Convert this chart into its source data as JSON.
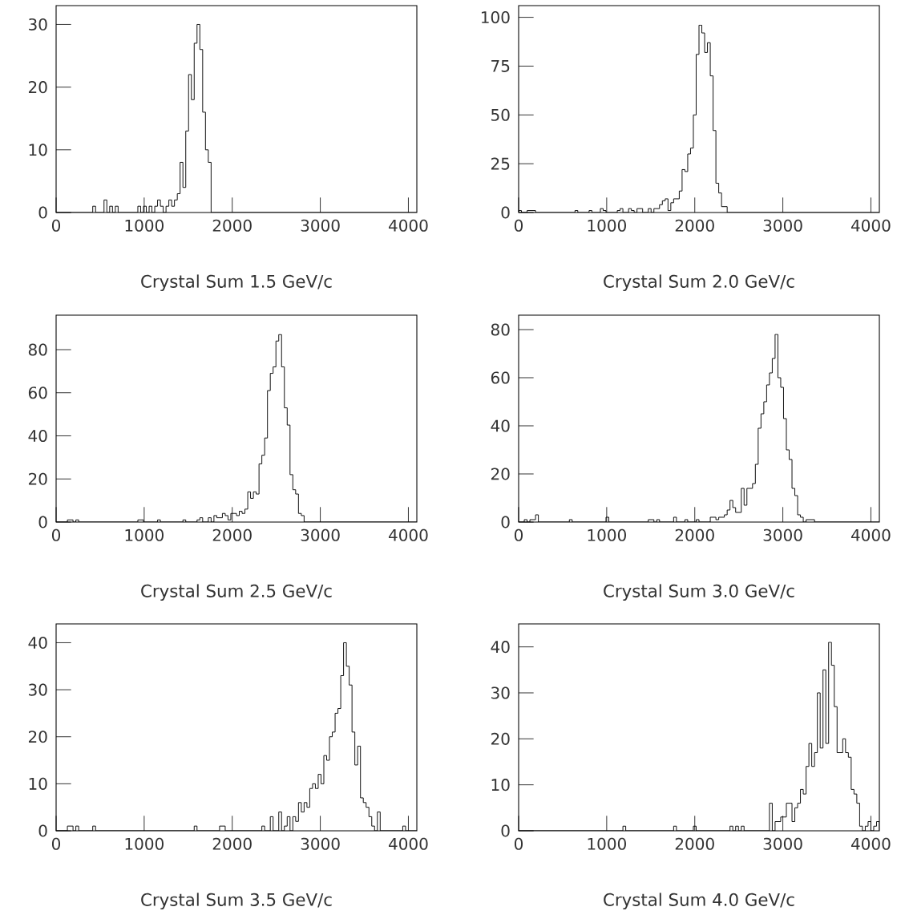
{
  "chart_data": [
    {
      "type": "histogram",
      "xlabel": "Crystal Sum 1.5 GeV/c",
      "color": "#000000",
      "xlim": [
        0,
        4096
      ],
      "ylim": [
        0,
        33
      ],
      "xticks": [
        0,
        1000,
        2000,
        3000,
        4000
      ],
      "yticks": [
        0,
        10,
        20,
        30
      ],
      "bins": [
        0,
        32,
        64,
        96,
        128,
        160,
        192,
        224,
        256,
        288,
        320,
        352,
        384,
        416,
        448,
        480,
        512,
        544,
        576,
        608,
        640,
        672,
        704,
        736,
        768,
        800,
        832,
        864,
        896,
        928,
        960,
        992,
        1024,
        1056,
        1088,
        1120,
        1152,
        1184,
        1216,
        1248,
        1280,
        1312,
        1344,
        1376,
        1408,
        1440,
        1472,
        1504,
        1536,
        1568,
        1600,
        1632,
        1664,
        1696,
        1728,
        1760,
        1792,
        1824,
        1856,
        1888,
        1920,
        1952,
        1984,
        2016,
        2048,
        2080,
        2112,
        2144,
        2176,
        2208,
        2240,
        2272,
        2304,
        2336,
        2368,
        2400,
        2432,
        2464,
        2496,
        2528,
        2560,
        2592,
        2624,
        2656,
        2688,
        2720,
        2752,
        2784,
        2816,
        2848,
        2880,
        2912,
        2944,
        2976,
        3008,
        3040,
        3072,
        3104,
        3136,
        3168,
        3200,
        3232,
        3264,
        3296,
        3328,
        3360,
        3392,
        3424,
        3456,
        3488,
        3520,
        3552,
        3584,
        3616,
        3648,
        3680,
        3712,
        3744,
        3776,
        3808,
        3840,
        3872,
        3904,
        3936,
        3968,
        4000,
        4032,
        4064,
        4096
      ],
      "values": [
        0,
        0,
        0,
        0,
        0,
        0,
        0,
        0,
        0,
        0,
        0,
        0,
        0,
        1,
        0,
        0,
        0,
        2,
        0,
        1,
        0,
        1,
        0,
        0,
        0,
        0,
        0,
        0,
        0,
        1,
        0,
        1,
        0,
        1,
        0,
        1,
        2,
        1,
        0,
        1,
        2,
        1,
        2,
        3,
        8,
        4,
        13,
        22,
        18,
        27,
        30,
        26,
        16,
        10,
        8,
        0,
        0,
        0,
        0,
        0,
        0,
        0,
        0,
        0,
        0,
        0,
        0,
        0,
        0,
        0,
        0,
        0,
        0,
        0,
        0,
        0,
        0,
        0,
        0,
        0,
        0,
        0,
        0,
        0,
        0,
        0,
        0,
        0,
        0,
        0,
        0,
        0,
        0,
        0,
        0,
        0,
        0,
        0,
        0,
        0,
        0,
        0,
        0,
        0,
        0,
        0,
        0,
        0,
        0,
        0,
        0,
        0,
        0,
        0,
        0,
        0,
        0,
        0,
        0,
        0,
        0,
        0,
        0,
        0,
        0,
        0,
        0,
        0
      ]
    },
    {
      "type": "histogram",
      "xlabel": "Crystal Sum 2.0 GeV/c",
      "color": "#000000",
      "xlim": [
        0,
        4096
      ],
      "ylim": [
        0,
        106
      ],
      "xticks": [
        0,
        1000,
        2000,
        3000,
        4000
      ],
      "yticks": [
        0,
        25,
        50,
        75,
        100
      ],
      "bins": [
        0,
        32,
        64,
        96,
        128,
        160,
        192,
        224,
        256,
        288,
        320,
        352,
        384,
        416,
        448,
        480,
        512,
        544,
        576,
        608,
        640,
        672,
        704,
        736,
        768,
        800,
        832,
        864,
        896,
        928,
        960,
        992,
        1024,
        1056,
        1088,
        1120,
        1152,
        1184,
        1216,
        1248,
        1280,
        1312,
        1344,
        1376,
        1408,
        1440,
        1472,
        1504,
        1536,
        1568,
        1600,
        1632,
        1664,
        1696,
        1728,
        1760,
        1792,
        1824,
        1856,
        1888,
        1920,
        1952,
        1984,
        2016,
        2048,
        2080,
        2112,
        2144,
        2176,
        2208,
        2240,
        2272,
        2304,
        2336,
        2368,
        2400,
        2432,
        2464,
        2496,
        2528,
        2560,
        2592,
        2624,
        2656,
        2688,
        2720,
        2752,
        2784,
        2816,
        2848,
        2880,
        2912,
        2944,
        2976,
        3008,
        3040,
        3072,
        3104,
        3136,
        3168,
        3200,
        3232,
        3264,
        3296,
        3328,
        3360,
        3392,
        3424,
        3456,
        3488,
        3520,
        3552,
        3584,
        3616,
        3648,
        3680,
        3712,
        3744,
        3776,
        3808,
        3840,
        3872,
        3904,
        3936,
        3968,
        4000,
        4032,
        4064,
        4096
      ],
      "values": [
        1,
        0,
        0,
        1,
        1,
        1,
        0,
        0,
        0,
        0,
        0,
        0,
        0,
        0,
        0,
        0,
        0,
        0,
        0,
        0,
        1,
        0,
        0,
        0,
        0,
        1,
        0,
        0,
        0,
        2,
        1,
        0,
        0,
        0,
        0,
        1,
        2,
        0,
        0,
        2,
        1,
        0,
        2,
        2,
        0,
        0,
        2,
        0,
        2,
        2,
        4,
        6,
        7,
        1,
        5,
        7,
        7,
        11,
        22,
        21,
        30,
        33,
        50,
        81,
        96,
        92,
        82,
        87,
        70,
        42,
        15,
        10,
        3,
        3,
        0,
        0,
        0,
        0,
        0,
        0,
        0,
        0,
        0,
        0,
        0,
        0,
        0,
        0,
        0,
        0,
        0,
        0,
        0,
        0,
        0,
        0,
        0,
        0,
        0,
        0,
        0,
        0,
        0,
        0,
        0,
        0,
        0,
        0,
        0,
        0,
        0,
        0,
        0,
        0,
        0,
        0,
        0,
        0,
        0,
        0,
        0,
        0,
        0,
        0,
        0,
        0,
        0,
        0
      ]
    },
    {
      "type": "histogram",
      "xlabel": "Crystal Sum 2.5 GeV/c",
      "color": "#000000",
      "xlim": [
        0,
        4096
      ],
      "ylim": [
        0,
        96
      ],
      "xticks": [
        0,
        1000,
        2000,
        3000,
        4000
      ],
      "yticks": [
        0,
        20,
        40,
        60,
        80
      ],
      "bins": [
        0,
        32,
        64,
        96,
        128,
        160,
        192,
        224,
        256,
        288,
        320,
        352,
        384,
        416,
        448,
        480,
        512,
        544,
        576,
        608,
        640,
        672,
        704,
        736,
        768,
        800,
        832,
        864,
        896,
        928,
        960,
        992,
        1024,
        1056,
        1088,
        1120,
        1152,
        1184,
        1216,
        1248,
        1280,
        1312,
        1344,
        1376,
        1408,
        1440,
        1472,
        1504,
        1536,
        1568,
        1600,
        1632,
        1664,
        1696,
        1728,
        1760,
        1792,
        1824,
        1856,
        1888,
        1920,
        1952,
        1984,
        2016,
        2048,
        2080,
        2112,
        2144,
        2176,
        2208,
        2240,
        2272,
        2304,
        2336,
        2368,
        2400,
        2432,
        2464,
        2496,
        2528,
        2560,
        2592,
        2624,
        2656,
        2688,
        2720,
        2752,
        2784,
        2816,
        2848,
        2880,
        2912,
        2944,
        2976,
        3008,
        3040,
        3072,
        3104,
        3136,
        3168,
        3200,
        3232,
        3264,
        3296,
        3328,
        3360,
        3392,
        3424,
        3456,
        3488,
        3520,
        3552,
        3584,
        3616,
        3648,
        3680,
        3712,
        3744,
        3776,
        3808,
        3840,
        3872,
        3904,
        3936,
        3968,
        4000,
        4032,
        4064,
        4096
      ],
      "values": [
        0,
        0,
        0,
        0,
        1,
        1,
        0,
        1,
        0,
        0,
        0,
        0,
        0,
        0,
        0,
        0,
        0,
        0,
        0,
        0,
        0,
        0,
        0,
        0,
        0,
        0,
        0,
        0,
        0,
        1,
        1,
        0,
        0,
        0,
        0,
        0,
        1,
        0,
        0,
        0,
        0,
        0,
        0,
        0,
        0,
        1,
        0,
        0,
        0,
        0,
        1,
        2,
        0,
        0,
        2,
        0,
        3,
        2,
        2,
        4,
        3,
        1,
        4,
        4,
        3,
        5,
        4,
        6,
        14,
        11,
        14,
        13,
        27,
        31,
        39,
        61,
        69,
        72,
        84,
        87,
        72,
        53,
        45,
        22,
        15,
        13,
        4,
        3,
        0,
        0,
        0,
        0,
        0,
        0,
        0,
        0,
        0,
        0,
        0,
        0,
        0,
        0,
        0,
        0,
        0,
        0,
        0,
        0,
        0,
        0,
        0,
        0,
        0,
        0,
        0,
        0,
        0,
        0,
        0,
        0,
        0,
        0,
        0,
        0,
        0,
        0,
        0,
        0
      ]
    },
    {
      "type": "histogram",
      "xlabel": "Crystal Sum 3.0 GeV/c",
      "color": "#000000",
      "xlim": [
        0,
        4096
      ],
      "ylim": [
        0,
        86
      ],
      "xticks": [
        0,
        1000,
        2000,
        3000,
        4000
      ],
      "yticks": [
        0,
        20,
        40,
        60,
        80
      ],
      "bins": [
        0,
        32,
        64,
        96,
        128,
        160,
        192,
        224,
        256,
        288,
        320,
        352,
        384,
        416,
        448,
        480,
        512,
        544,
        576,
        608,
        640,
        672,
        704,
        736,
        768,
        800,
        832,
        864,
        896,
        928,
        960,
        992,
        1024,
        1056,
        1088,
        1120,
        1152,
        1184,
        1216,
        1248,
        1280,
        1312,
        1344,
        1376,
        1408,
        1440,
        1472,
        1504,
        1536,
        1568,
        1600,
        1632,
        1664,
        1696,
        1728,
        1760,
        1792,
        1824,
        1856,
        1888,
        1920,
        1952,
        1984,
        2016,
        2048,
        2080,
        2112,
        2144,
        2176,
        2208,
        2240,
        2272,
        2304,
        2336,
        2368,
        2400,
        2432,
        2464,
        2496,
        2528,
        2560,
        2592,
        2624,
        2656,
        2688,
        2720,
        2752,
        2784,
        2816,
        2848,
        2880,
        2912,
        2944,
        2976,
        3008,
        3040,
        3072,
        3104,
        3136,
        3168,
        3200,
        3232,
        3264,
        3296,
        3328,
        3360,
        3392,
        3424,
        3456,
        3488,
        3520,
        3552,
        3584,
        3616,
        3648,
        3680,
        3712,
        3744,
        3776,
        3808,
        3840,
        3872,
        3904,
        3936,
        3968,
        4000,
        4032,
        4064,
        4096
      ],
      "values": [
        0,
        0,
        1,
        0,
        1,
        1,
        3,
        0,
        0,
        0,
        0,
        0,
        0,
        0,
        0,
        0,
        0,
        0,
        1,
        0,
        0,
        0,
        0,
        0,
        0,
        0,
        0,
        0,
        0,
        0,
        0,
        2,
        0,
        0,
        0,
        0,
        0,
        0,
        0,
        0,
        0,
        0,
        0,
        0,
        0,
        0,
        1,
        1,
        0,
        1,
        0,
        0,
        0,
        0,
        0,
        2,
        0,
        0,
        0,
        1,
        0,
        0,
        0,
        1,
        0,
        0,
        0,
        0,
        2,
        2,
        1,
        2,
        2,
        3,
        5,
        9,
        6,
        4,
        4,
        14,
        7,
        14,
        14,
        16,
        24,
        39,
        45,
        50,
        57,
        62,
        68,
        78,
        60,
        56,
        43,
        30,
        26,
        14,
        11,
        3,
        2,
        0,
        1,
        1,
        1,
        0,
        0,
        0,
        0,
        0,
        0,
        0,
        0,
        0,
        0,
        0,
        0,
        0,
        0,
        0,
        0,
        0,
        0,
        0,
        0,
        0,
        0,
        0
      ]
    },
    {
      "type": "histogram",
      "xlabel": "Crystal Sum 3.5 GeV/c",
      "color": "#000000",
      "xlim": [
        0,
        4096
      ],
      "ylim": [
        0,
        44
      ],
      "xticks": [
        0,
        1000,
        2000,
        3000,
        4000
      ],
      "yticks": [
        0,
        10,
        20,
        30,
        40
      ],
      "bins": [
        0,
        32,
        64,
        96,
        128,
        160,
        192,
        224,
        256,
        288,
        320,
        352,
        384,
        416,
        448,
        480,
        512,
        544,
        576,
        608,
        640,
        672,
        704,
        736,
        768,
        800,
        832,
        864,
        896,
        928,
        960,
        992,
        1024,
        1056,
        1088,
        1120,
        1152,
        1184,
        1216,
        1248,
        1280,
        1312,
        1344,
        1376,
        1408,
        1440,
        1472,
        1504,
        1536,
        1568,
        1600,
        1632,
        1664,
        1696,
        1728,
        1760,
        1792,
        1824,
        1856,
        1888,
        1920,
        1952,
        1984,
        2016,
        2048,
        2080,
        2112,
        2144,
        2176,
        2208,
        2240,
        2272,
        2304,
        2336,
        2368,
        2400,
        2432,
        2464,
        2496,
        2528,
        2560,
        2592,
        2624,
        2656,
        2688,
        2720,
        2752,
        2784,
        2816,
        2848,
        2880,
        2912,
        2944,
        2976,
        3008,
        3040,
        3072,
        3104,
        3136,
        3168,
        3200,
        3232,
        3264,
        3296,
        3328,
        3360,
        3392,
        3424,
        3456,
        3488,
        3520,
        3552,
        3584,
        3616,
        3648,
        3680,
        3712,
        3744,
        3776,
        3808,
        3840,
        3872,
        3904,
        3936,
        3968,
        4000,
        4032,
        4064,
        4096
      ],
      "values": [
        0,
        0,
        0,
        0,
        1,
        1,
        0,
        1,
        0,
        0,
        0,
        0,
        0,
        1,
        0,
        0,
        0,
        0,
        0,
        0,
        0,
        0,
        0,
        0,
        0,
        0,
        0,
        0,
        0,
        0,
        0,
        0,
        0,
        0,
        0,
        0,
        0,
        0,
        0,
        0,
        0,
        0,
        0,
        0,
        0,
        0,
        0,
        0,
        0,
        1,
        0,
        0,
        0,
        0,
        0,
        0,
        0,
        0,
        1,
        1,
        0,
        0,
        0,
        0,
        0,
        0,
        0,
        0,
        0,
        0,
        0,
        0,
        0,
        1,
        0,
        0,
        3,
        0,
        0,
        4,
        0,
        1,
        3,
        0,
        3,
        2,
        6,
        4,
        6,
        5,
        9,
        10,
        9,
        12,
        10,
        16,
        15,
        20,
        21,
        25,
        26,
        33,
        40,
        35,
        31,
        21,
        14,
        18,
        7,
        6,
        5,
        3,
        1,
        0,
        4,
        0,
        0,
        0,
        0,
        0,
        0,
        0,
        0,
        1,
        0,
        0,
        0,
        0
      ]
    },
    {
      "type": "histogram",
      "xlabel": "Crystal Sum 4.0 GeV/c",
      "color": "#000000",
      "xlim": [
        0,
        4096
      ],
      "ylim": [
        0,
        45
      ],
      "xticks": [
        0,
        1000,
        2000,
        3000,
        4000
      ],
      "yticks": [
        0,
        10,
        20,
        30,
        40
      ],
      "bins": [
        0,
        32,
        64,
        96,
        128,
        160,
        192,
        224,
        256,
        288,
        320,
        352,
        384,
        416,
        448,
        480,
        512,
        544,
        576,
        608,
        640,
        672,
        704,
        736,
        768,
        800,
        832,
        864,
        896,
        928,
        960,
        992,
        1024,
        1056,
        1088,
        1120,
        1152,
        1184,
        1216,
        1248,
        1280,
        1312,
        1344,
        1376,
        1408,
        1440,
        1472,
        1504,
        1536,
        1568,
        1600,
        1632,
        1664,
        1696,
        1728,
        1760,
        1792,
        1824,
        1856,
        1888,
        1920,
        1952,
        1984,
        2016,
        2048,
        2080,
        2112,
        2144,
        2176,
        2208,
        2240,
        2272,
        2304,
        2336,
        2368,
        2400,
        2432,
        2464,
        2496,
        2528,
        2560,
        2592,
        2624,
        2656,
        2688,
        2720,
        2752,
        2784,
        2816,
        2848,
        2880,
        2912,
        2944,
        2976,
        3008,
        3040,
        3072,
        3104,
        3136,
        3168,
        3200,
        3232,
        3264,
        3296,
        3328,
        3360,
        3392,
        3424,
        3456,
        3488,
        3520,
        3552,
        3584,
        3616,
        3648,
        3680,
        3712,
        3744,
        3776,
        3808,
        3840,
        3872,
        3904,
        3936,
        3968,
        4000,
        4032,
        4064,
        4096
      ],
      "values": [
        0,
        0,
        0,
        0,
        0,
        0,
        0,
        0,
        0,
        0,
        0,
        0,
        0,
        0,
        0,
        0,
        0,
        0,
        0,
        0,
        0,
        0,
        0,
        0,
        0,
        0,
        0,
        0,
        0,
        0,
        0,
        0,
        0,
        0,
        0,
        0,
        0,
        1,
        0,
        0,
        0,
        0,
        0,
        0,
        0,
        0,
        0,
        0,
        0,
        0,
        0,
        0,
        0,
        0,
        0,
        1,
        0,
        0,
        0,
        0,
        0,
        0,
        1,
        0,
        0,
        0,
        0,
        0,
        0,
        0,
        0,
        0,
        0,
        0,
        0,
        1,
        0,
        1,
        0,
        1,
        0,
        0,
        0,
        0,
        0,
        0,
        0,
        0,
        0,
        6,
        0,
        2,
        2,
        3,
        3,
        6,
        6,
        2,
        5,
        6,
        9,
        8,
        14,
        19,
        14,
        17,
        30,
        18,
        35,
        19,
        41,
        36,
        27,
        17,
        17,
        20,
        17,
        16,
        9,
        8,
        6,
        1,
        0,
        1,
        2,
        0,
        1,
        2
      ]
    }
  ]
}
